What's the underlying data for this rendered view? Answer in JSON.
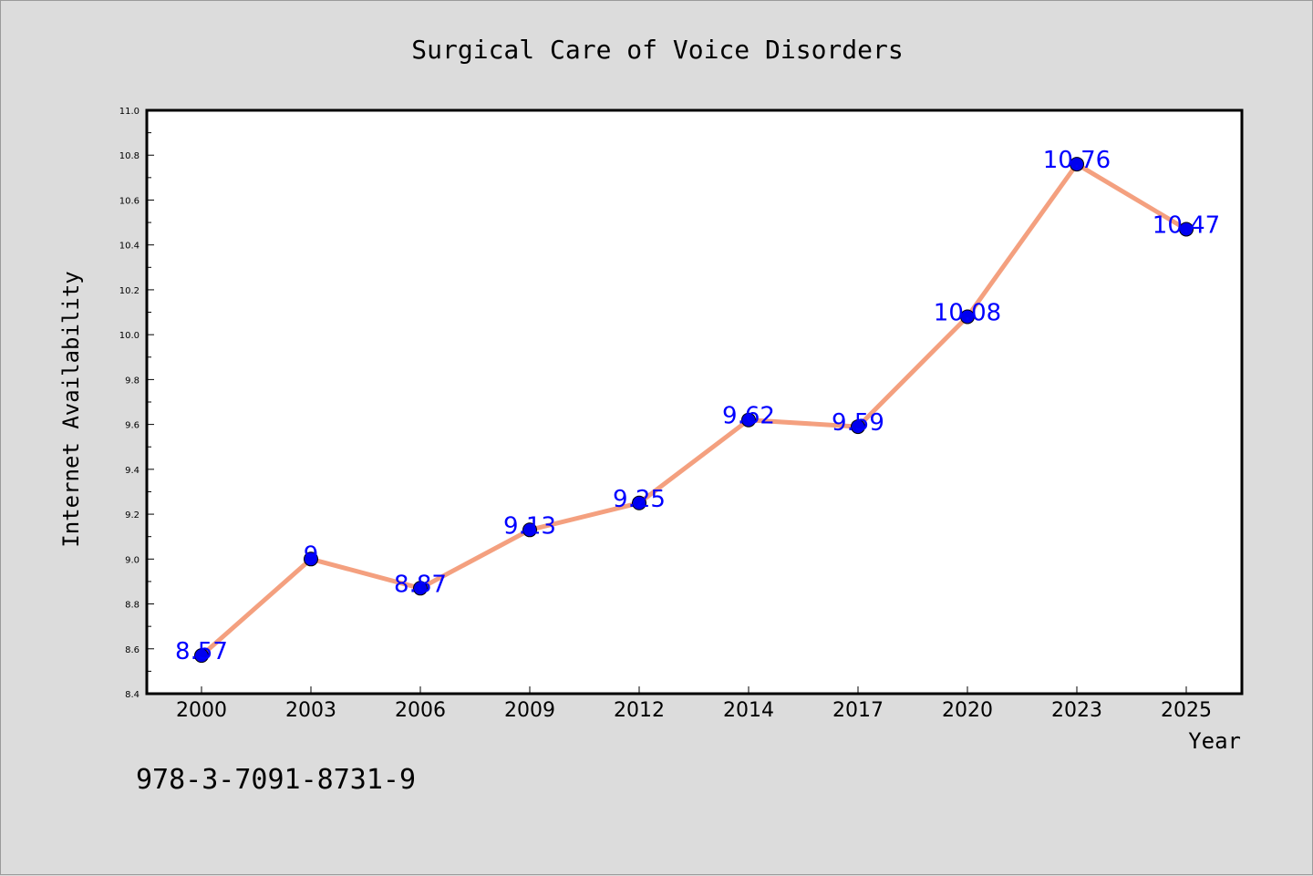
{
  "chart_data": {
    "type": "line",
    "title": "Surgical Care of Voice Disorders",
    "xlabel": "Year",
    "ylabel": "Internet Availability",
    "categories": [
      "2000",
      "2003",
      "2006",
      "2009",
      "2012",
      "2014",
      "2017",
      "2020",
      "2023",
      "2025"
    ],
    "series": [
      {
        "values": [
          8.57,
          9,
          8.87,
          9.13,
          9.25,
          9.62,
          9.59,
          10.08,
          10.76,
          10.47
        ],
        "labels": [
          "8.57",
          "9",
          "8.87",
          "9.13",
          "9.25",
          "9.62",
          "9.59",
          "10.08",
          "10.76",
          "10.47"
        ]
      }
    ],
    "ylim": [
      8.4,
      11.0
    ],
    "yticks": [
      "8.4",
      "8.6",
      "8.8",
      "9.0",
      "9.2",
      "9.4",
      "9.6",
      "9.8",
      "10.0",
      "10.2",
      "10.4",
      "10.6",
      "10.8",
      "11.0"
    ],
    "grid": false,
    "line_color": "#f4a07f",
    "marker_color": "#0000ee",
    "label_color": "#0000ff"
  },
  "footer": {
    "isbn": "978-3-7091-8731-9"
  }
}
